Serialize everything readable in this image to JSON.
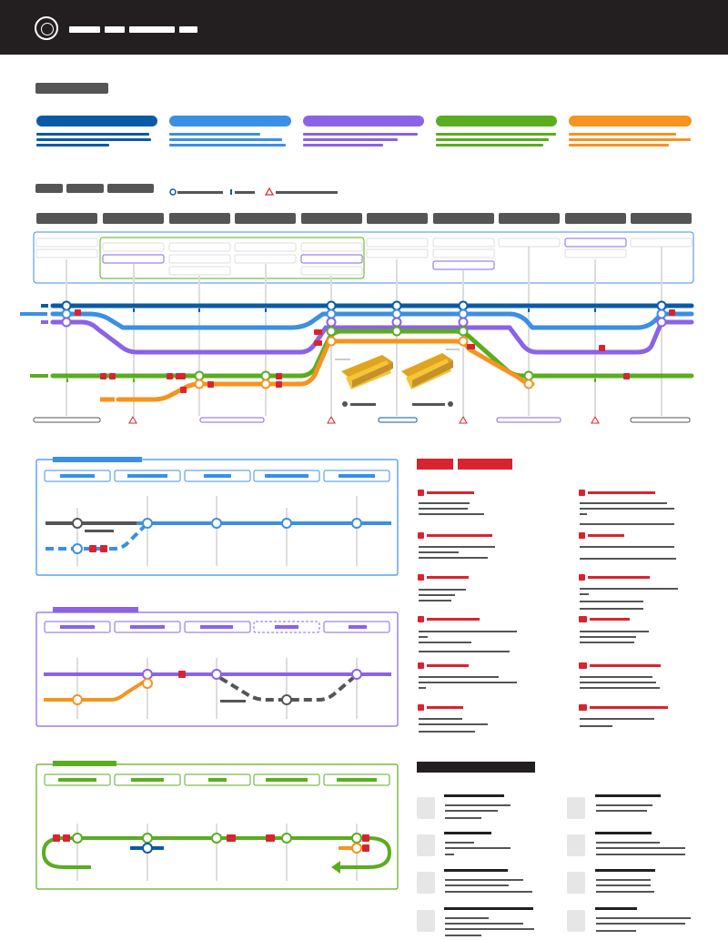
{
  "header": {
    "logo_icon": "ge-monogram-logo-icon",
    "background": "#231f20"
  },
  "colors": {
    "dark_blue": "#0a5aa8",
    "blue": "#3b8fe6",
    "purple": "#8a63e6",
    "green": "#5aad1e",
    "orange": "#f7931e",
    "dark_gray": "#555555",
    "red": "#d8242f"
  },
  "legend_icons": [
    "station-circle-icon",
    "stop-tick-icon",
    "warning-triangle-icon"
  ],
  "side_icons": [
    "step-square-icon"
  ],
  "photo_icons": [
    "equipment-photo-icon"
  ]
}
